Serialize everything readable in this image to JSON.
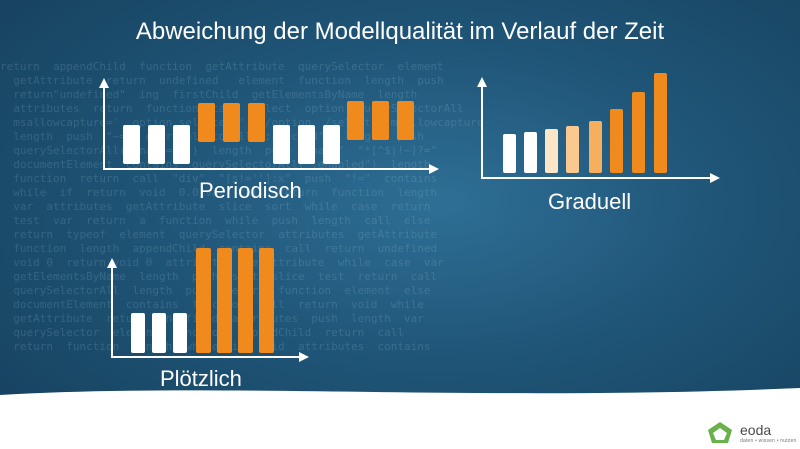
{
  "title": "Abweichung der Modellqualität im Verlauf der Zeit",
  "panels": {
    "periodisch": {
      "label": "Periodisch"
    },
    "graduell": {
      "label": "Graduell"
    },
    "ploetzlich": {
      "label": "Plötzlich"
    }
  },
  "colors": {
    "white_bar": "#ffffff",
    "orange": "#f08a1c",
    "light_orange_1": "#fde6c8",
    "light_orange_2": "#f9c98f",
    "light_orange_3": "#f6b05d",
    "axis": "#ffffff",
    "background": "#1f5577"
  },
  "logo": {
    "name": "eoda",
    "tagline": "daten • wissen • nutzen"
  }
}
